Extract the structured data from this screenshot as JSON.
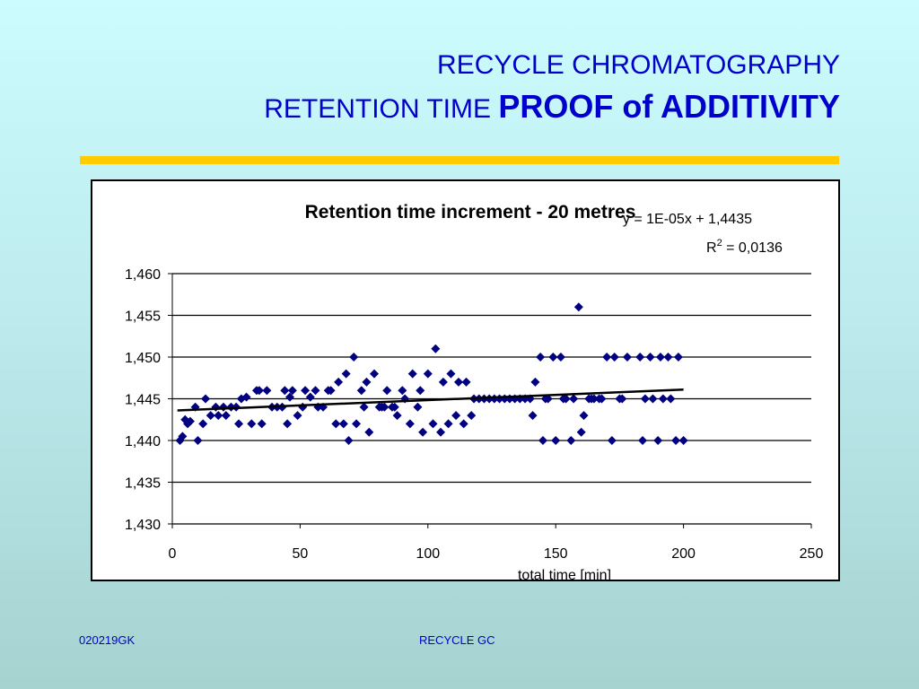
{
  "slide": {
    "title_line1": "RECYCLE CHROMATOGRAPHY",
    "title_line2_regular": "RETENTION TIME",
    "title_line2_bold": "PROOF of ADDITIVITY",
    "footer_left": "020219GK",
    "footer_center": "RECYCLE GC",
    "colors": {
      "title": "#0000cc",
      "rule": "#ffcc00",
      "markers": "#000080",
      "trendline": "#000000"
    }
  },
  "chart_data": {
    "type": "scatter",
    "title": "Retention time increment - 20 metres",
    "xlabel": "total time [min]",
    "ylabel": "",
    "xlim": [
      0,
      250
    ],
    "ylim": [
      1.43,
      1.46
    ],
    "x_ticks": [
      0,
      50,
      100,
      150,
      200,
      250
    ],
    "x_tick_labels": [
      "0",
      "50",
      "100",
      "150",
      "200",
      "250"
    ],
    "y_ticks": [
      1.43,
      1.435,
      1.44,
      1.445,
      1.45,
      1.455,
      1.46
    ],
    "y_tick_labels": [
      "1,430",
      "1,435",
      "1,440",
      "1,445",
      "1,450",
      "1,455",
      "1,460"
    ],
    "grid": "horizontal",
    "marker": "diamond",
    "trendline": {
      "type": "linear",
      "equation": "y = 1E-05x + 1,4435",
      "r2_prefix": "R",
      "r2_superscript": "2",
      "r2_value": " = 0,0136",
      "x_range": [
        2,
        200
      ],
      "y_at_start": 1.4436,
      "y_at_end": 1.4461
    },
    "points": [
      [
        3,
        1.44
      ],
      [
        4,
        1.4405
      ],
      [
        5,
        1.4425
      ],
      [
        6,
        1.442
      ],
      [
        7,
        1.4423
      ],
      [
        9,
        1.444
      ],
      [
        10,
        1.44
      ],
      [
        12,
        1.442
      ],
      [
        13,
        1.445
      ],
      [
        15,
        1.443
      ],
      [
        17,
        1.444
      ],
      [
        18,
        1.443
      ],
      [
        20,
        1.444
      ],
      [
        21,
        1.443
      ],
      [
        23,
        1.444
      ],
      [
        25,
        1.444
      ],
      [
        26,
        1.442
      ],
      [
        27,
        1.445
      ],
      [
        29,
        1.4452
      ],
      [
        31,
        1.442
      ],
      [
        33,
        1.446
      ],
      [
        34,
        1.446
      ],
      [
        35,
        1.442
      ],
      [
        37,
        1.446
      ],
      [
        39,
        1.444
      ],
      [
        41,
        1.444
      ],
      [
        43,
        1.444
      ],
      [
        44,
        1.446
      ],
      [
        45,
        1.442
      ],
      [
        46,
        1.4452
      ],
      [
        47,
        1.446
      ],
      [
        49,
        1.443
      ],
      [
        51,
        1.444
      ],
      [
        52,
        1.446
      ],
      [
        54,
        1.4452
      ],
      [
        56,
        1.446
      ],
      [
        57,
        1.444
      ],
      [
        59,
        1.444
      ],
      [
        61,
        1.446
      ],
      [
        62,
        1.446
      ],
      [
        64,
        1.442
      ],
      [
        65,
        1.447
      ],
      [
        67,
        1.442
      ],
      [
        68,
        1.448
      ],
      [
        69,
        1.44
      ],
      [
        71,
        1.45
      ],
      [
        72,
        1.442
      ],
      [
        74,
        1.446
      ],
      [
        75,
        1.444
      ],
      [
        76,
        1.447
      ],
      [
        77,
        1.441
      ],
      [
        79,
        1.448
      ],
      [
        81,
        1.444
      ],
      [
        82,
        1.444
      ],
      [
        83,
        1.444
      ],
      [
        84,
        1.446
      ],
      [
        86,
        1.444
      ],
      [
        87,
        1.444
      ],
      [
        88,
        1.443
      ],
      [
        90,
        1.446
      ],
      [
        91,
        1.445
      ],
      [
        93,
        1.442
      ],
      [
        94,
        1.448
      ],
      [
        96,
        1.444
      ],
      [
        97,
        1.446
      ],
      [
        98,
        1.441
      ],
      [
        100,
        1.448
      ],
      [
        102,
        1.442
      ],
      [
        103,
        1.451
      ],
      [
        105,
        1.441
      ],
      [
        106,
        1.447
      ],
      [
        108,
        1.442
      ],
      [
        109,
        1.448
      ],
      [
        111,
        1.443
      ],
      [
        112,
        1.447
      ],
      [
        114,
        1.442
      ],
      [
        115,
        1.447
      ],
      [
        117,
        1.443
      ],
      [
        118,
        1.445
      ],
      [
        120,
        1.445
      ],
      [
        122,
        1.445
      ],
      [
        124,
        1.445
      ],
      [
        126,
        1.445
      ],
      [
        128,
        1.445
      ],
      [
        130,
        1.445
      ],
      [
        132,
        1.445
      ],
      [
        134,
        1.445
      ],
      [
        136,
        1.445
      ],
      [
        138,
        1.445
      ],
      [
        140,
        1.445
      ],
      [
        141,
        1.443
      ],
      [
        142,
        1.447
      ],
      [
        144,
        1.45
      ],
      [
        145,
        1.44
      ],
      [
        146,
        1.445
      ],
      [
        147,
        1.445
      ],
      [
        149,
        1.45
      ],
      [
        150,
        1.44
      ],
      [
        152,
        1.45
      ],
      [
        153,
        1.445
      ],
      [
        154,
        1.445
      ],
      [
        156,
        1.44
      ],
      [
        157,
        1.445
      ],
      [
        159,
        1.456
      ],
      [
        160,
        1.441
      ],
      [
        161,
        1.443
      ],
      [
        163,
        1.445
      ],
      [
        164,
        1.445
      ],
      [
        165,
        1.445
      ],
      [
        167,
        1.445
      ],
      [
        168,
        1.445
      ],
      [
        170,
        1.45
      ],
      [
        172,
        1.44
      ],
      [
        173,
        1.45
      ],
      [
        175,
        1.445
      ],
      [
        176,
        1.445
      ],
      [
        178,
        1.45
      ],
      [
        183,
        1.45
      ],
      [
        184,
        1.44
      ],
      [
        185,
        1.445
      ],
      [
        187,
        1.45
      ],
      [
        188,
        1.445
      ],
      [
        190,
        1.44
      ],
      [
        191,
        1.45
      ],
      [
        192,
        1.445
      ],
      [
        194,
        1.45
      ],
      [
        195,
        1.445
      ],
      [
        197,
        1.44
      ],
      [
        198,
        1.45
      ],
      [
        200,
        1.44
      ]
    ]
  }
}
